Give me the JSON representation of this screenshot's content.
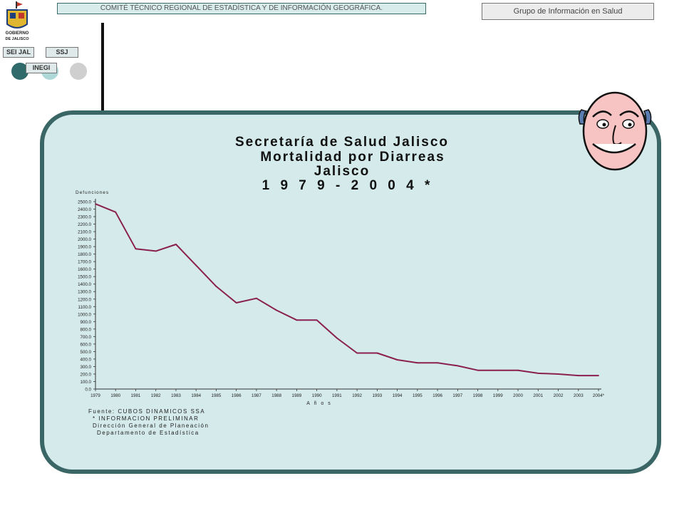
{
  "header": {
    "center_text": "COMITÉ TÉCNICO REGIONAL DE ESTADÍSTICA Y DE INFORMACIÓN GEOGRÁFICA.",
    "right_text": "Grupo de Información en Salud"
  },
  "logo": {
    "text_line1": "GOBIERNO",
    "text_line2": "DE JALISCO"
  },
  "tags": {
    "seijal": "SEI JAL",
    "ssj": "SSJ",
    "inegi": "INEGI"
  },
  "titles": {
    "line1": "Secretaría de Salud Jalisco",
    "line2": "Mortalidad por Diarreas",
    "line3": "Jalisco",
    "line4": "1 9 7 9 - 2 0 0 4 *"
  },
  "source": {
    "line1": "Fuente: CUBOS DINAMICOS SSA",
    "line2": "* INFORMACION PRELIMINAR",
    "line3": "Dirección General de Planeación",
    "line4": "Departamento de Estadística"
  },
  "chart_data": {
    "type": "line",
    "ylabel": "Defunciones",
    "xlabel": "A ñ o s",
    "ylim": [
      0,
      2500
    ],
    "ystep": 100,
    "categories": [
      "1979",
      "1980",
      "1981",
      "1982",
      "1983",
      "1984",
      "1985",
      "1986",
      "1987",
      "1988",
      "1989",
      "1990",
      "1991",
      "1992",
      "1993",
      "1994",
      "1995",
      "1996",
      "1997",
      "1998",
      "1999",
      "2000",
      "2001",
      "2002",
      "2003",
      "2004*"
    ],
    "series": [
      {
        "values": [
          2470,
          2360,
          1870,
          1840,
          1930,
          1650,
          1370,
          1150,
          1210,
          1050,
          920,
          920,
          680,
          480,
          480,
          390,
          350,
          350,
          310,
          250,
          250,
          250,
          210,
          200,
          180,
          180
        ]
      }
    ],
    "line_color": "#8a2050"
  }
}
